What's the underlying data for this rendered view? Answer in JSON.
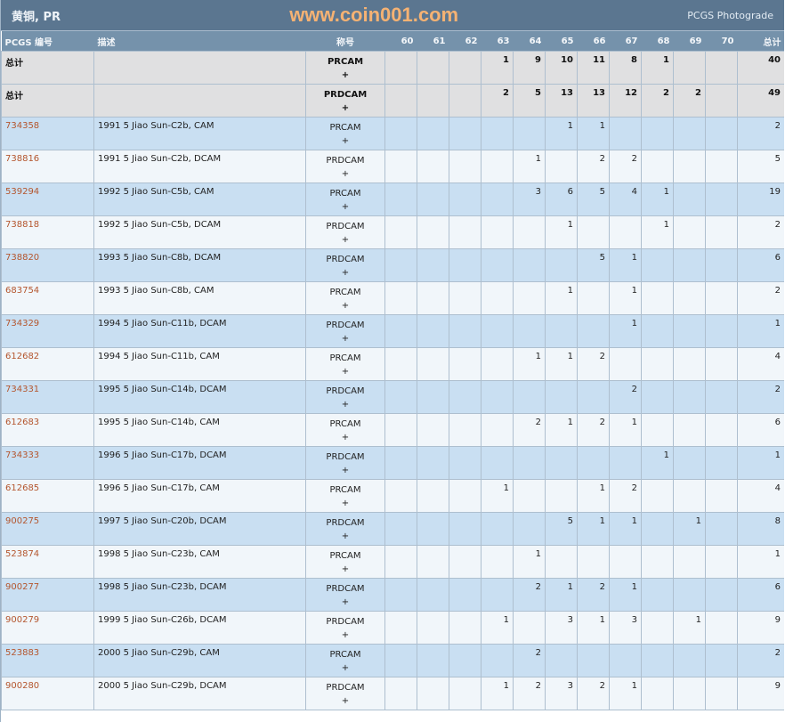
{
  "header": {
    "title": "黄铜, PR",
    "brand": "PCGS Photograde"
  },
  "columns": {
    "id": "PCGS 编号",
    "desc": "描述",
    "designation": "称号",
    "grades": [
      "60",
      "61",
      "62",
      "63",
      "64",
      "65",
      "66",
      "67",
      "68",
      "69",
      "70"
    ],
    "total": "总计"
  },
  "totals": [
    {
      "label": "总计",
      "designation": "PRCAM",
      "plus": "+",
      "grades": [
        "",
        "",
        "",
        "1",
        "9",
        "10",
        "11",
        "8",
        "1",
        "",
        ""
      ],
      "total": "40"
    },
    {
      "label": "总计",
      "designation": "PRDCAM",
      "plus": "+",
      "grades": [
        "",
        "",
        "",
        "2",
        "5",
        "13",
        "13",
        "12",
        "2",
        "2",
        ""
      ],
      "total": "49"
    }
  ],
  "rows": [
    {
      "id": "734358",
      "desc": "1991 5 Jiao Sun-C2b, CAM",
      "designation": "PRCAM",
      "plus": "+",
      "grades": [
        "",
        "",
        "",
        "",
        "",
        "1",
        "1",
        "",
        "",
        "",
        ""
      ],
      "total": "2"
    },
    {
      "id": "738816",
      "desc": "1991 5 Jiao Sun-C2b, DCAM",
      "designation": "PRDCAM",
      "plus": "+",
      "grades": [
        "",
        "",
        "",
        "",
        "1",
        "",
        "2",
        "2",
        "",
        "",
        ""
      ],
      "total": "5"
    },
    {
      "id": "539294",
      "desc": "1992 5 Jiao Sun-C5b, CAM",
      "designation": "PRCAM",
      "plus": "+",
      "grades": [
        "",
        "",
        "",
        "",
        "3",
        "6",
        "5",
        "4",
        "1",
        "",
        ""
      ],
      "total": "19"
    },
    {
      "id": "738818",
      "desc": "1992 5 Jiao Sun-C5b, DCAM",
      "designation": "PRDCAM",
      "plus": "+",
      "grades": [
        "",
        "",
        "",
        "",
        "",
        "1",
        "",
        "",
        "1",
        "",
        ""
      ],
      "total": "2"
    },
    {
      "id": "738820",
      "desc": "1993 5 Jiao Sun-C8b, DCAM",
      "designation": "PRDCAM",
      "plus": "+",
      "grades": [
        "",
        "",
        "",
        "",
        "",
        "",
        "5",
        "1",
        "",
        "",
        ""
      ],
      "total": "6"
    },
    {
      "id": "683754",
      "desc": "1993 5 Jiao Sun-C8b, CAM",
      "designation": "PRCAM",
      "plus": "+",
      "grades": [
        "",
        "",
        "",
        "",
        "",
        "1",
        "",
        "1",
        "",
        "",
        ""
      ],
      "total": "2"
    },
    {
      "id": "734329",
      "desc": "1994 5 Jiao Sun-C11b, DCAM",
      "designation": "PRDCAM",
      "plus": "+",
      "grades": [
        "",
        "",
        "",
        "",
        "",
        "",
        "",
        "1",
        "",
        "",
        ""
      ],
      "total": "1"
    },
    {
      "id": "612682",
      "desc": "1994 5 Jiao Sun-C11b, CAM",
      "designation": "PRCAM",
      "plus": "+",
      "grades": [
        "",
        "",
        "",
        "",
        "1",
        "1",
        "2",
        "",
        "",
        "",
        ""
      ],
      "total": "4"
    },
    {
      "id": "734331",
      "desc": "1995 5 Jiao Sun-C14b, DCAM",
      "designation": "PRDCAM",
      "plus": "+",
      "grades": [
        "",
        "",
        "",
        "",
        "",
        "",
        "",
        "2",
        "",
        "",
        ""
      ],
      "total": "2"
    },
    {
      "id": "612683",
      "desc": "1995 5 Jiao Sun-C14b, CAM",
      "designation": "PRCAM",
      "plus": "+",
      "grades": [
        "",
        "",
        "",
        "",
        "2",
        "1",
        "2",
        "1",
        "",
        "",
        ""
      ],
      "total": "6"
    },
    {
      "id": "734333",
      "desc": "1996 5 Jiao Sun-C17b, DCAM",
      "designation": "PRDCAM",
      "plus": "+",
      "grades": [
        "",
        "",
        "",
        "",
        "",
        "",
        "",
        "",
        "1",
        "",
        ""
      ],
      "total": "1"
    },
    {
      "id": "612685",
      "desc": "1996 5 Jiao Sun-C17b, CAM",
      "designation": "PRCAM",
      "plus": "+",
      "grades": [
        "",
        "",
        "",
        "1",
        "",
        "",
        "1",
        "2",
        "",
        "",
        ""
      ],
      "total": "4"
    },
    {
      "id": "900275",
      "desc": "1997 5 Jiao Sun-C20b, DCAM",
      "designation": "PRDCAM",
      "plus": "+",
      "grades": [
        "",
        "",
        "",
        "",
        "",
        "5",
        "1",
        "1",
        "",
        "1",
        ""
      ],
      "total": "8"
    },
    {
      "id": "523874",
      "desc": "1998 5 Jiao Sun-C23b, CAM",
      "designation": "PRCAM",
      "plus": "+",
      "grades": [
        "",
        "",
        "",
        "",
        "1",
        "",
        "",
        "",
        "",
        "",
        ""
      ],
      "total": "1"
    },
    {
      "id": "900277",
      "desc": "1998 5 Jiao Sun-C23b, DCAM",
      "designation": "PRDCAM",
      "plus": "+",
      "grades": [
        "",
        "",
        "",
        "",
        "2",
        "1",
        "2",
        "1",
        "",
        "",
        ""
      ],
      "total": "6"
    },
    {
      "id": "900279",
      "desc": "1999 5 Jiao Sun-C26b, DCAM",
      "designation": "PRDCAM",
      "plus": "+",
      "grades": [
        "",
        "",
        "",
        "1",
        "",
        "3",
        "1",
        "3",
        "",
        "1",
        ""
      ],
      "total": "9"
    },
    {
      "id": "523883",
      "desc": "2000 5 Jiao Sun-C29b, CAM",
      "designation": "PRCAM",
      "plus": "+",
      "grades": [
        "",
        "",
        "",
        "",
        "2",
        "",
        "",
        "",
        "",
        "",
        ""
      ],
      "total": "2"
    },
    {
      "id": "900280",
      "desc": "2000 5 Jiao Sun-C29b, DCAM",
      "designation": "PRDCAM",
      "plus": "+",
      "grades": [
        "",
        "",
        "",
        "1",
        "2",
        "3",
        "2",
        "1",
        "",
        "",
        ""
      ],
      "total": "9"
    }
  ],
  "watermark": "www.coin001.com"
}
